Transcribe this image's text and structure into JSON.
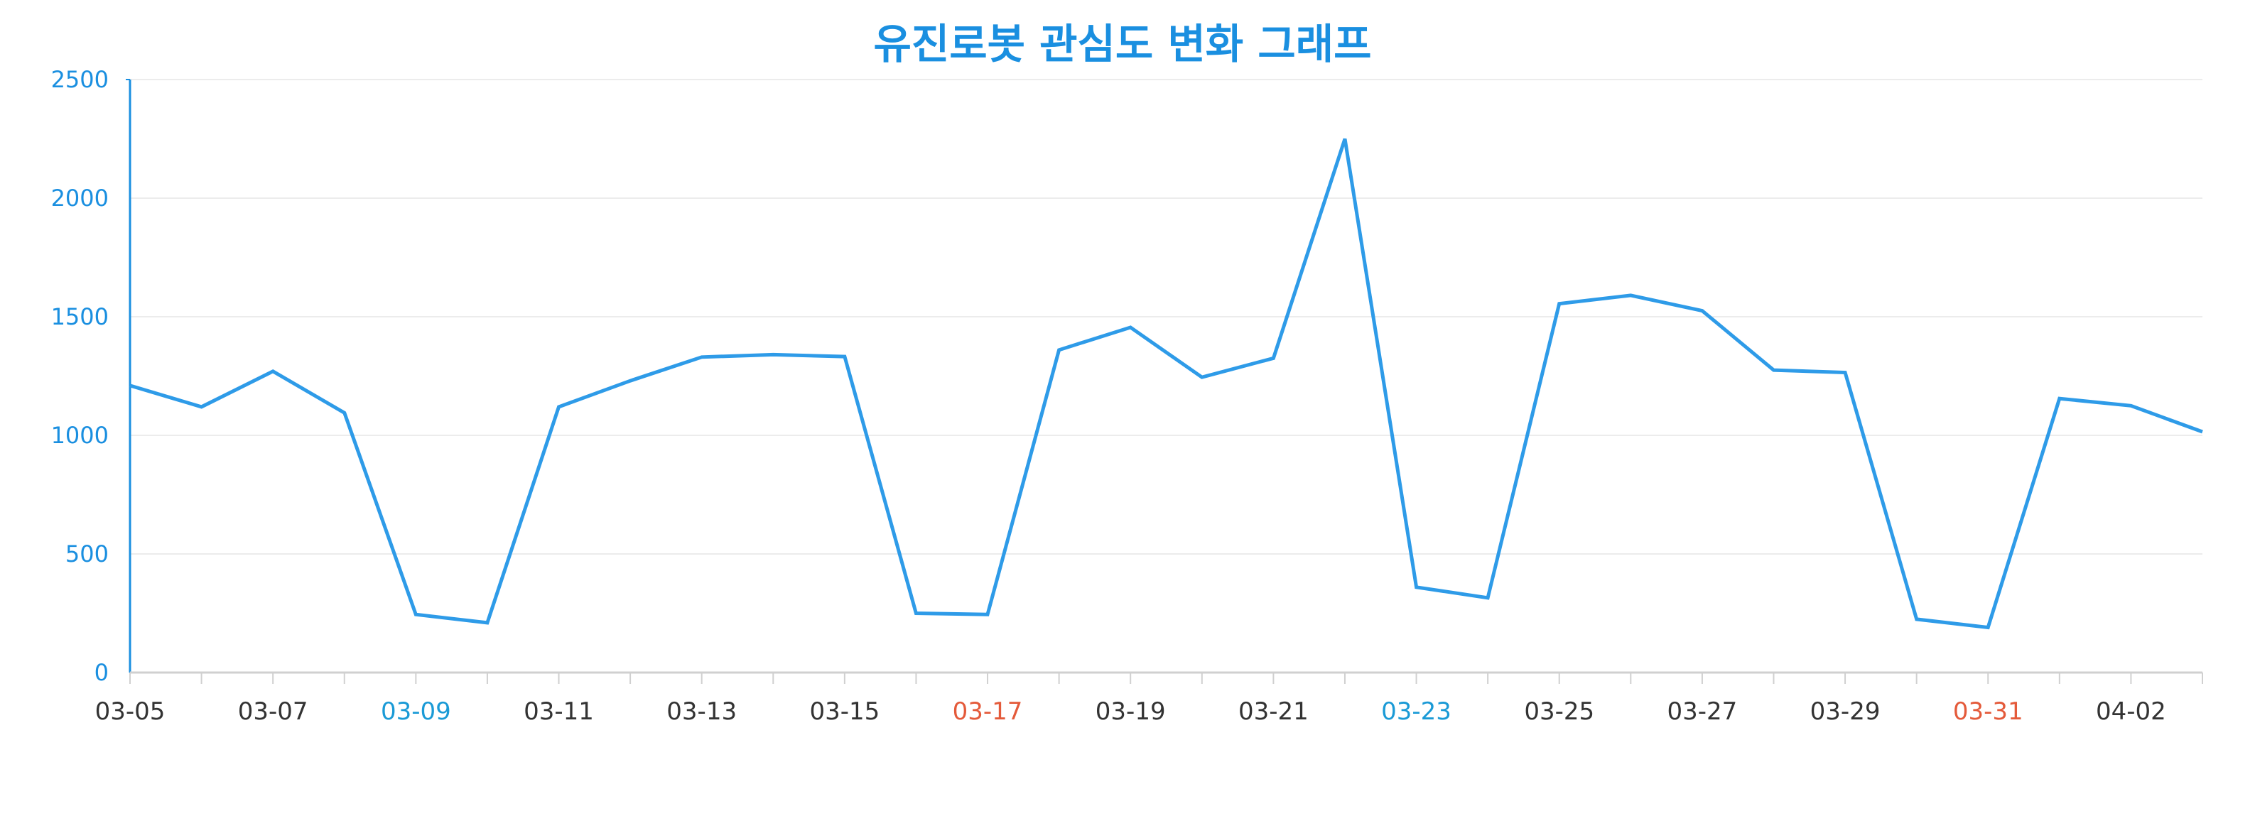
{
  "chart_data": {
    "type": "line",
    "title": "유진로봇 관심도 변화 그래프",
    "xlabel": "",
    "ylabel": "",
    "ylim": [
      0,
      2500
    ],
    "yticks": [
      0,
      500,
      1000,
      1500,
      2000,
      2500
    ],
    "grid": true,
    "x": [
      "03-05",
      "03-06",
      "03-07",
      "03-08",
      "03-09",
      "03-10",
      "03-11",
      "03-12",
      "03-13",
      "03-14",
      "03-15",
      "03-16",
      "03-17",
      "03-18",
      "03-19",
      "03-20",
      "03-21",
      "03-22",
      "03-23",
      "03-24",
      "03-25",
      "03-26",
      "03-27",
      "03-28",
      "03-29",
      "03-30",
      "03-31",
      "04-01",
      "04-02",
      "04-03"
    ],
    "xtick_labels": [
      "03-05",
      "03-07",
      "03-09",
      "03-11",
      "03-13",
      "03-15",
      "03-17",
      "03-19",
      "03-21",
      "03-23",
      "03-25",
      "03-27",
      "03-29",
      "03-31",
      "04-02"
    ],
    "xtick_label_colors": {
      "03-09": "#1a9ad6",
      "03-17": "#e45a3a",
      "03-23": "#1a9ad6",
      "03-31": "#e45a3a"
    },
    "series": [
      {
        "values": [
          1210,
          1120,
          1270,
          1095,
          245,
          210,
          1120,
          1230,
          1330,
          1340,
          1332,
          250,
          245,
          1360,
          1455,
          1245,
          1325,
          2250,
          360,
          315,
          1555,
          1590,
          1525,
          1275,
          1265,
          225,
          190,
          1155,
          1125,
          1015
        ]
      }
    ]
  },
  "colors": {
    "title": "#1a8fe0",
    "line": "#2e9be8",
    "axis": "#1a8fe0",
    "ytick_text": "#1a8fe0",
    "xtick_text": "#333333",
    "grid": "#ececec",
    "xaxis_line": "#d0d0d0"
  }
}
